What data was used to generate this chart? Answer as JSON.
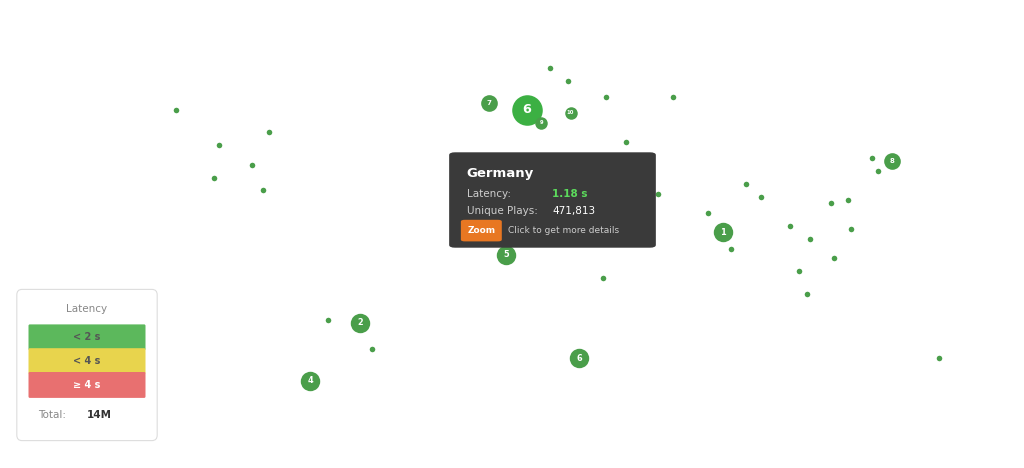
{
  "background_color": "#ffffff",
  "map_land_color": "#c8c8c8",
  "map_ocean_color": "#ffffff",
  "map_border_color": "#ffffff",
  "map_border_lw": 0.5,
  "extent": [
    -170,
    180,
    -60,
    85
  ],
  "tooltip": {
    "bg_color": "#3a3a3a",
    "title": "Germany",
    "latency_label": "Latency:",
    "latency_value": "1.18 s",
    "latency_color": "#5cdb5c",
    "plays_label": "Unique Plays:",
    "plays_value": "471,813",
    "plays_color": "#ffffff",
    "zoom_btn_color": "#e87722",
    "zoom_btn_text": "Zoom",
    "click_text": "Click to get more details"
  },
  "legend": {
    "title": "Latency",
    "items": [
      {
        "label": "< 2 s",
        "color": "#5cb85c"
      },
      {
        "label": "< 4 s",
        "color": "#e8d44d"
      },
      {
        "label": "≥ 4 s",
        "color": "#e87070"
      }
    ],
    "total_label": "Total:",
    "total_value": "14M",
    "bg_color": "#ffffff",
    "border_color": "#dddddd"
  },
  "markers": [
    {
      "lon": -110,
      "lat": 51,
      "size": 5,
      "label": "",
      "color": "#4a9e4a"
    },
    {
      "lon": -95,
      "lat": 40,
      "size": 5,
      "label": "",
      "color": "#4a9e4a"
    },
    {
      "lon": -84,
      "lat": 34,
      "size": 5,
      "label": "",
      "color": "#4a9e4a"
    },
    {
      "lon": -97,
      "lat": 30,
      "size": 5,
      "label": "",
      "color": "#4a9e4a"
    },
    {
      "lon": -78,
      "lat": 44,
      "size": 5,
      "label": "",
      "color": "#4a9e4a"
    },
    {
      "lon": -80,
      "lat": 26,
      "size": 5,
      "label": "",
      "color": "#4a9e4a"
    },
    {
      "lon": -58,
      "lat": -14,
      "size": 5,
      "label": "",
      "color": "#4a9e4a"
    },
    {
      "lon": -47,
      "lat": -15,
      "size": 14,
      "label": "2",
      "color": "#4a9e4a"
    },
    {
      "lon": -64,
      "lat": -33,
      "size": 14,
      "label": "4",
      "color": "#4a9e4a"
    },
    {
      "lon": -43,
      "lat": -23,
      "size": 5,
      "label": "",
      "color": "#4a9e4a"
    },
    {
      "lon": 10,
      "lat": 51,
      "size": 22,
      "label": "6",
      "color": "#3cb043"
    },
    {
      "lon": -3,
      "lat": 53,
      "size": 12,
      "label": "7",
      "color": "#4a9e4a"
    },
    {
      "lon": 15,
      "lat": 47,
      "size": 9,
      "label": "9",
      "color": "#4a9e4a"
    },
    {
      "lon": 25,
      "lat": 50,
      "size": 9,
      "label": "10",
      "color": "#4a9e4a"
    },
    {
      "lon": 37,
      "lat": 55,
      "size": 5,
      "label": "",
      "color": "#4a9e4a"
    },
    {
      "lon": 44,
      "lat": 41,
      "size": 5,
      "label": "",
      "color": "#4a9e4a"
    },
    {
      "lon": 55,
      "lat": 25,
      "size": 5,
      "label": "",
      "color": "#4a9e4a"
    },
    {
      "lon": 72,
      "lat": 19,
      "size": 5,
      "label": "",
      "color": "#4a9e4a"
    },
    {
      "lon": 77,
      "lat": 13,
      "size": 14,
      "label": "1",
      "color": "#4a9e4a"
    },
    {
      "lon": 80,
      "lat": 8,
      "size": 5,
      "label": "",
      "color": "#4a9e4a"
    },
    {
      "lon": 103,
      "lat": 1,
      "size": 5,
      "label": "",
      "color": "#4a9e4a"
    },
    {
      "lon": 107,
      "lat": 11,
      "size": 5,
      "label": "",
      "color": "#4a9e4a"
    },
    {
      "lon": 121,
      "lat": 14,
      "size": 5,
      "label": "",
      "color": "#4a9e4a"
    },
    {
      "lon": 120,
      "lat": 23,
      "size": 5,
      "label": "",
      "color": "#4a9e4a"
    },
    {
      "lon": 114,
      "lat": 22,
      "size": 5,
      "label": "",
      "color": "#4a9e4a"
    },
    {
      "lon": 128,
      "lat": 36,
      "size": 5,
      "label": "",
      "color": "#4a9e4a"
    },
    {
      "lon": 130,
      "lat": 32,
      "size": 5,
      "label": "",
      "color": "#4a9e4a"
    },
    {
      "lon": 135,
      "lat": 35,
      "size": 12,
      "label": "8",
      "color": "#4a9e4a"
    },
    {
      "lon": 151,
      "lat": -26,
      "size": 5,
      "label": "",
      "color": "#4a9e4a"
    },
    {
      "lon": 36,
      "lat": -1,
      "size": 5,
      "label": "",
      "color": "#4a9e4a"
    },
    {
      "lon": 3,
      "lat": 6,
      "size": 14,
      "label": "5",
      "color": "#4a9e4a"
    },
    {
      "lon": 28,
      "lat": -26,
      "size": 14,
      "label": "6",
      "color": "#4a9e4a"
    },
    {
      "lon": 18,
      "lat": 64,
      "size": 5,
      "label": "",
      "color": "#4a9e4a"
    },
    {
      "lon": 24,
      "lat": 60,
      "size": 5,
      "label": "",
      "color": "#4a9e4a"
    },
    {
      "lon": 60,
      "lat": 55,
      "size": 5,
      "label": "",
      "color": "#4a9e4a"
    },
    {
      "lon": 85,
      "lat": 28,
      "size": 5,
      "label": "",
      "color": "#4a9e4a"
    },
    {
      "lon": 90,
      "lat": 24,
      "size": 5,
      "label": "",
      "color": "#4a9e4a"
    },
    {
      "lon": 100,
      "lat": 15,
      "size": 5,
      "label": "",
      "color": "#4a9e4a"
    },
    {
      "lon": 106,
      "lat": -6,
      "size": 5,
      "label": "",
      "color": "#4a9e4a"
    },
    {
      "lon": 115,
      "lat": 5,
      "size": 5,
      "label": "",
      "color": "#4a9e4a"
    }
  ]
}
